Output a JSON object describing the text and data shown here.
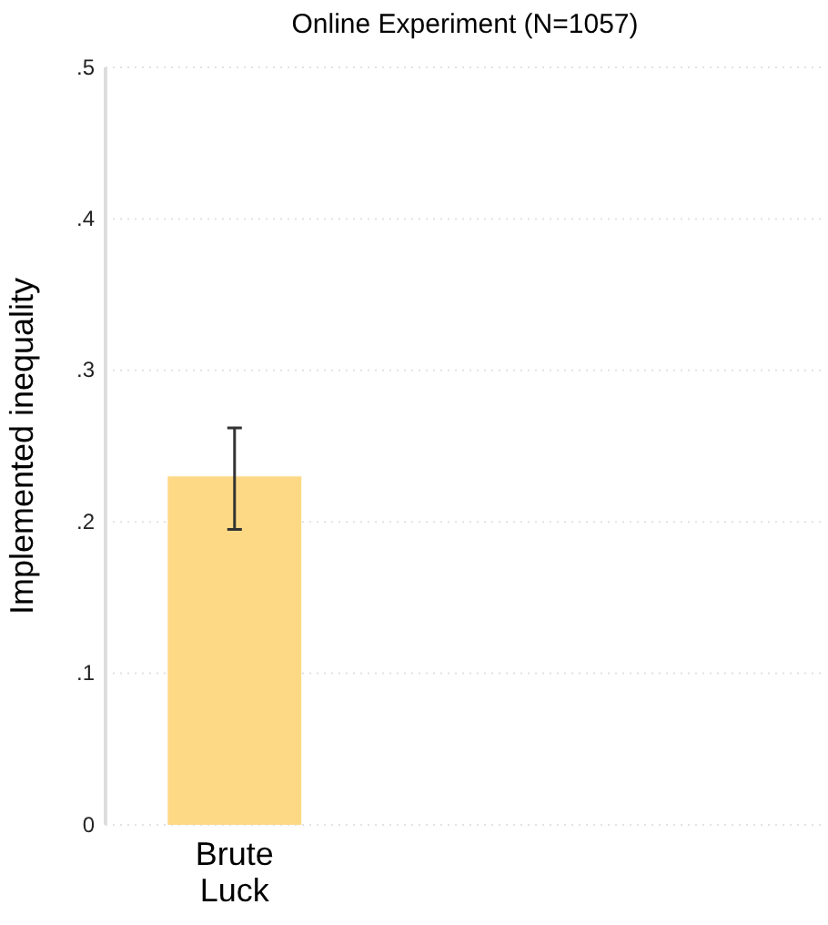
{
  "chart_data": {
    "type": "bar",
    "title": "Online Experiment (N=1057)",
    "ylabel": "Implemented inequality",
    "categories": [
      "Brute Luck",
      null,
      null
    ],
    "values": [
      0.23,
      null,
      null
    ],
    "errors": [
      [
        0.195,
        0.262
      ],
      null,
      null
    ],
    "color": "#fdd985",
    "ylim": [
      0,
      0.5
    ],
    "yticks": [
      {
        "value": 0,
        "label": "0"
      },
      {
        "value": 0.1,
        "label": ".1"
      },
      {
        "value": 0.2,
        "label": ".2"
      },
      {
        "value": 0.3,
        "label": ".3"
      },
      {
        "value": 0.4,
        "label": ".4"
      },
      {
        "value": 0.5,
        "label": ".5"
      }
    ],
    "grid": "y"
  }
}
